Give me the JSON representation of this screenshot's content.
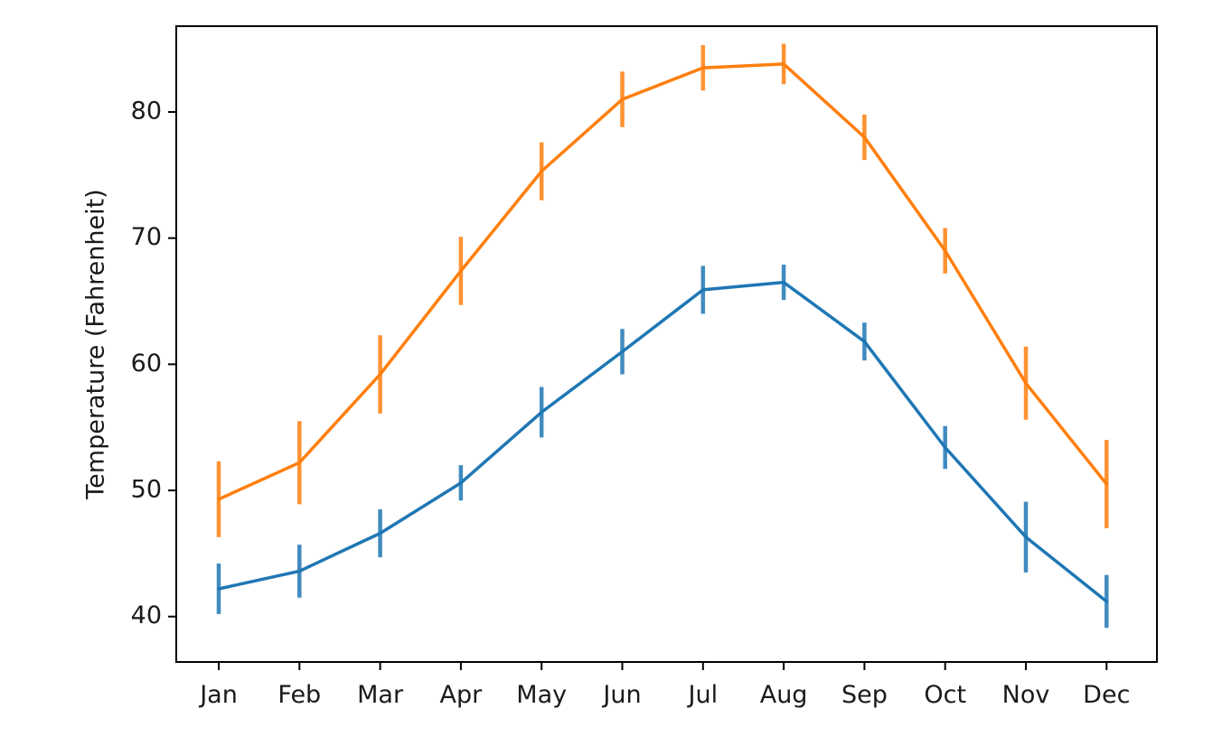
{
  "chart_data": {
    "type": "line",
    "title": "",
    "xlabel": "",
    "ylabel": "Temperature (Fahrenheit)",
    "categories": [
      "Jan",
      "Feb",
      "Mar",
      "Apr",
      "May",
      "Jun",
      "Jul",
      "Aug",
      "Sep",
      "Oct",
      "Nov",
      "Dec"
    ],
    "y_ticks": [
      40,
      50,
      60,
      70,
      80
    ],
    "ylim": [
      36.4,
      86.8
    ],
    "grid": false,
    "legend": "none",
    "series": [
      {
        "color": "#1f77b4",
        "values": [
          42.2,
          43.6,
          46.6,
          50.6,
          56.2,
          61.0,
          65.9,
          66.5,
          61.8,
          53.4,
          46.3,
          41.2
        ],
        "errors": [
          2.0,
          2.1,
          1.9,
          1.4,
          2.0,
          1.8,
          1.9,
          1.4,
          1.5,
          1.7,
          2.8,
          2.1
        ]
      },
      {
        "color": "#ff7f0e",
        "values": [
          49.3,
          52.2,
          59.2,
          67.4,
          75.3,
          81.0,
          83.5,
          83.8,
          78.0,
          69.0,
          58.5,
          50.5
        ],
        "errors": [
          3.0,
          3.3,
          3.1,
          2.7,
          2.3,
          2.2,
          1.8,
          1.6,
          1.8,
          1.8,
          2.9,
          3.5
        ]
      }
    ]
  }
}
